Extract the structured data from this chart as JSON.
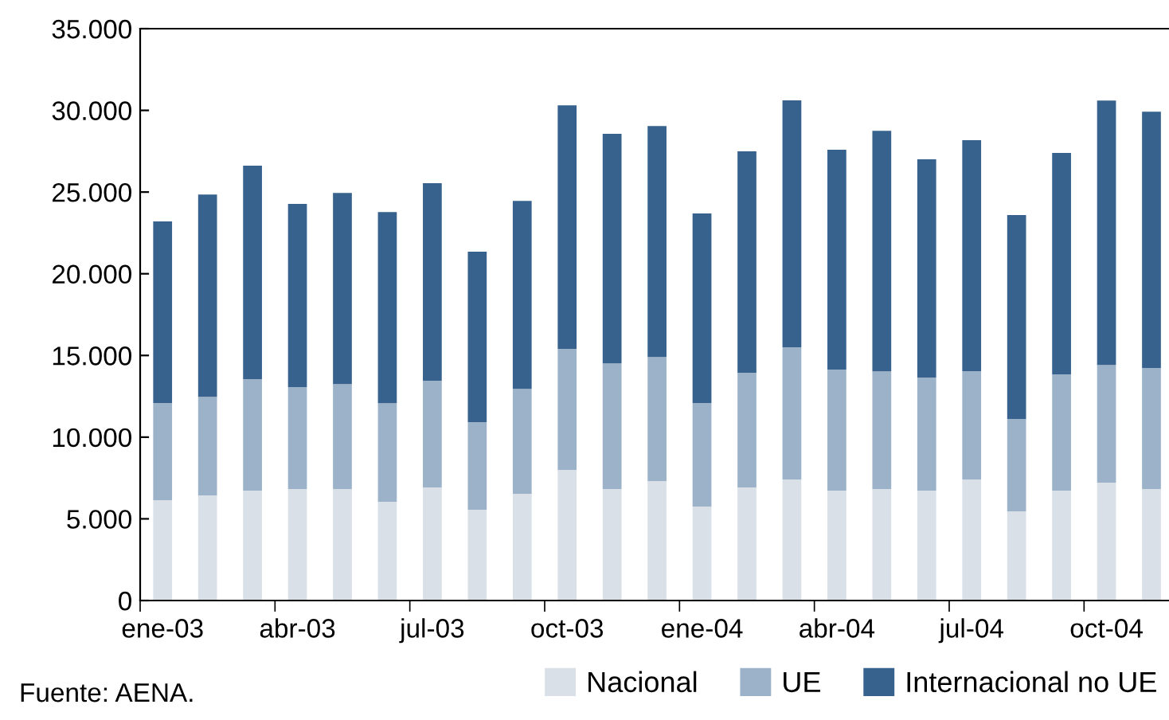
{
  "chart_data": {
    "type": "bar",
    "stacked": true,
    "categories": [
      "ene-03",
      null,
      null,
      "abr-03",
      null,
      null,
      "jul-03",
      null,
      null,
      "oct-03",
      null,
      null,
      "ene-04",
      null,
      null,
      "abr-04",
      null,
      null,
      "jul-04",
      null,
      null,
      "oct-04",
      null
    ],
    "series": [
      {
        "name": "Nacional",
        "color": "#d9e0e8",
        "values": [
          6140,
          6430,
          6730,
          6820,
          6820,
          6040,
          6920,
          5560,
          6530,
          7990,
          6820,
          7310,
          5750,
          6920,
          7410,
          6730,
          6820,
          6730,
          7410,
          5460,
          6730,
          7210,
          6820
        ]
      },
      {
        "name": "UE",
        "color": "#9cb2c8",
        "values": [
          5950,
          6040,
          6820,
          6240,
          6430,
          6040,
          6530,
          5360,
          6430,
          7410,
          7700,
          7600,
          6340,
          7020,
          8090,
          7410,
          7210,
          6920,
          6630,
          5650,
          7120,
          7210,
          7410
        ]
      },
      {
        "name": "Internacional no UE",
        "color": "#37628d",
        "values": [
          11110,
          12380,
          13060,
          11210,
          11700,
          11700,
          12090,
          10430,
          11500,
          14910,
          14040,
          14130,
          11600,
          13550,
          15110,
          13450,
          14720,
          13350,
          14130,
          12480,
          13550,
          16180,
          15690
        ]
      }
    ],
    "ylim": [
      0,
      35000
    ],
    "yticks": [
      {
        "value": 0,
        "label": "0"
      },
      {
        "value": 5000,
        "label": "5.000"
      },
      {
        "value": 10000,
        "label": "10.000"
      },
      {
        "value": 15000,
        "label": "15.000"
      },
      {
        "value": 20000,
        "label": "20.000"
      },
      {
        "value": 25000,
        "label": "25.000"
      },
      {
        "value": 30000,
        "label": "30.000"
      },
      {
        "value": 35000,
        "label": "35.000"
      }
    ],
    "grid": false,
    "legend": "bottom",
    "annotations": [
      "Fuente: AENA."
    ]
  }
}
